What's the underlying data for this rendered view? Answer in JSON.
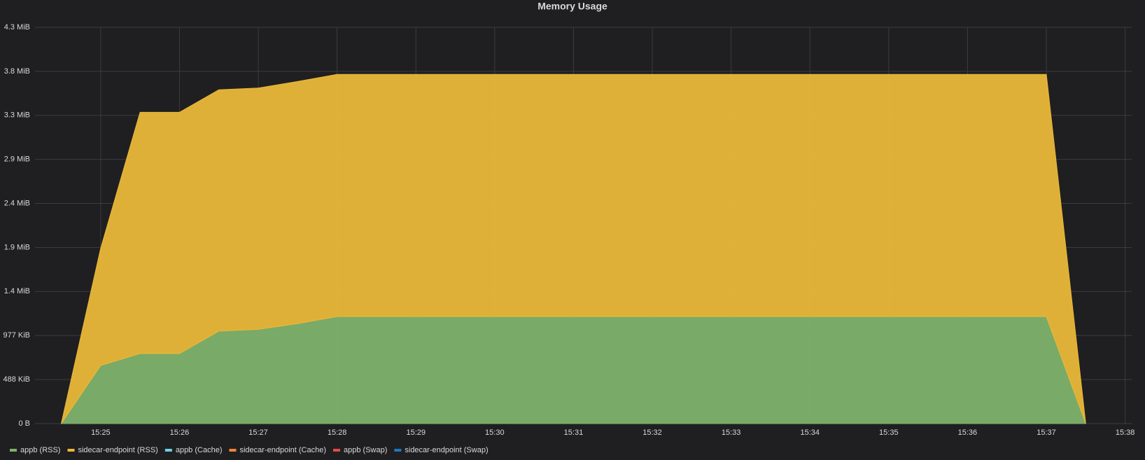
{
  "chart_data": {
    "type": "area",
    "stacked": true,
    "title": "Memory Usage",
    "x": [
      "15:24:30",
      "15:25:00",
      "15:25:30",
      "15:26:00",
      "15:26:30",
      "15:27:00",
      "15:27:30",
      "15:28:00",
      "15:28:30",
      "15:29:00",
      "15:29:30",
      "15:30:00",
      "15:30:30",
      "15:31:00",
      "15:31:30",
      "15:32:00",
      "15:32:30",
      "15:33:00",
      "15:33:30",
      "15:34:00",
      "15:34:30",
      "15:35:00",
      "15:35:30",
      "15:36:00",
      "15:36:30",
      "15:37:00",
      "15:37:30"
    ],
    "series": [
      {
        "name": "appb (RSS)",
        "color": "#7eb26d",
        "values": [
          0,
          660000,
          795000,
          795000,
          1050000,
          1070000,
          1135000,
          1215000,
          1215000,
          1215000,
          1215000,
          1215000,
          1215000,
          1215000,
          1215000,
          1215000,
          1215000,
          1215000,
          1215000,
          1215000,
          1215000,
          1215000,
          1215000,
          1215000,
          1215000,
          1215000,
          0
        ]
      },
      {
        "name": "sidecar-endpoint (RSS)",
        "color": "#eab839",
        "values": [
          0,
          1330000,
          2740000,
          2740000,
          2740000,
          2740000,
          2750000,
          2750000,
          2750000,
          2750000,
          2750000,
          2750000,
          2750000,
          2750000,
          2750000,
          2750000,
          2750000,
          2750000,
          2750000,
          2750000,
          2750000,
          2750000,
          2750000,
          2750000,
          2750000,
          2750000,
          0
        ]
      },
      {
        "name": "appb (Cache)",
        "color": "#6ed0e0",
        "values": [
          null,
          null,
          null,
          null,
          null,
          null,
          null,
          null,
          null,
          null,
          null,
          null,
          null,
          null,
          null,
          null,
          null,
          null,
          null,
          null,
          null,
          null,
          null,
          null,
          null,
          null,
          null
        ]
      },
      {
        "name": "sidecar-endpoint (Cache)",
        "color": "#ef843c",
        "values": [
          null,
          null,
          null,
          null,
          null,
          null,
          null,
          null,
          null,
          null,
          null,
          null,
          null,
          null,
          null,
          null,
          null,
          null,
          null,
          null,
          null,
          null,
          null,
          null,
          null,
          null,
          null
        ]
      },
      {
        "name": "appb (Swap)",
        "color": "#e24d42",
        "values": [
          null,
          null,
          null,
          null,
          null,
          null,
          null,
          null,
          null,
          null,
          null,
          null,
          null,
          null,
          null,
          null,
          null,
          null,
          null,
          null,
          null,
          null,
          null,
          null,
          null,
          null,
          null
        ]
      },
      {
        "name": "sidecar-endpoint (Swap)",
        "color": "#1f78c1",
        "values": [
          null,
          null,
          null,
          null,
          null,
          null,
          null,
          null,
          null,
          null,
          null,
          null,
          null,
          null,
          null,
          null,
          null,
          null,
          null,
          null,
          null,
          null,
          null,
          null,
          null,
          null,
          null
        ]
      }
    ],
    "xlim": [
      "15:24:10",
      "15:38:05"
    ],
    "xticks": [
      "15:25",
      "15:26",
      "15:27",
      "15:28",
      "15:29",
      "15:30",
      "15:31",
      "15:32",
      "15:33",
      "15:34",
      "15:35",
      "15:36",
      "15:37",
      "15:38"
    ],
    "ylim": [
      0,
      4500000
    ],
    "yticks": [
      {
        "value": 0,
        "label": "0 B"
      },
      {
        "value": 500000,
        "label": "488 KiB"
      },
      {
        "value": 1000000,
        "label": "977 KiB"
      },
      {
        "value": 1500000,
        "label": "1.4 MiB"
      },
      {
        "value": 2000000,
        "label": "1.9 MiB"
      },
      {
        "value": 2500000,
        "label": "2.4 MiB"
      },
      {
        "value": 3000000,
        "label": "2.9 MiB"
      },
      {
        "value": 3500000,
        "label": "3.3 MiB"
      },
      {
        "value": 4000000,
        "label": "3.8 MiB"
      },
      {
        "value": 4500000,
        "label": "4.3 MiB"
      }
    ],
    "grid": true,
    "legend": "bottom"
  }
}
